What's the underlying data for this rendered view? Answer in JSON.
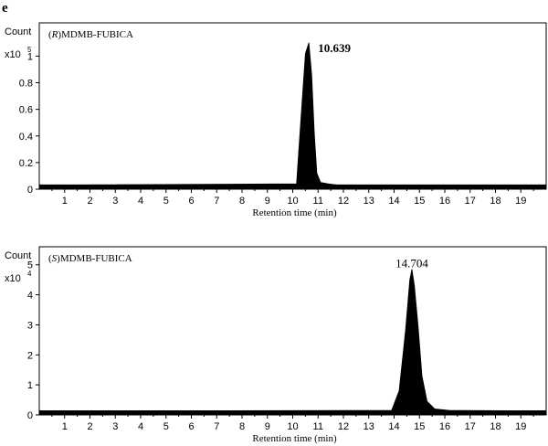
{
  "panel_letter": "e",
  "chart_data": [
    {
      "type": "line",
      "title_prefix": "R",
      "title_suffix": "MDMB-FUBICA",
      "ylabel": "Count",
      "yscale_label": "x10",
      "yscale_exp": "5",
      "xlabel": "Retention time (min)",
      "xlim": [
        0,
        20
      ],
      "ylim": [
        0,
        1.25
      ],
      "xticks": [
        1,
        2,
        3,
        4,
        5,
        6,
        7,
        8,
        9,
        10,
        11,
        12,
        13,
        14,
        15,
        16,
        17,
        18,
        19
      ],
      "yticks": [
        0,
        0.2,
        0.4,
        0.6,
        0.8,
        1
      ],
      "baseline": 0.03,
      "series": [
        {
          "x": [
            0,
            10.15,
            10.35,
            10.5,
            10.639,
            10.75,
            10.85,
            10.95,
            11.1,
            11.4,
            11.8,
            20
          ],
          "y": [
            0.03,
            0.04,
            0.6,
            1.02,
            1.1,
            0.85,
            0.42,
            0.12,
            0.05,
            0.04,
            0.03,
            0.03
          ]
        }
      ],
      "annotations": [
        {
          "text": "10.639",
          "x": 10.639,
          "y": 1.1,
          "bold": true
        }
      ]
    },
    {
      "type": "line",
      "title_prefix": "S",
      "title_suffix": "MDMB-FUBICA",
      "ylabel": "Count",
      "yscale_label": "x10",
      "yscale_exp": "4",
      "xlabel": "Retention time (min)",
      "xlim": [
        0,
        20
      ],
      "ylim": [
        0,
        5.6
      ],
      "xticks": [
        1,
        2,
        3,
        4,
        5,
        6,
        7,
        8,
        9,
        10,
        11,
        12,
        13,
        14,
        15,
        16,
        17,
        18,
        19
      ],
      "yticks": [
        0,
        1,
        2,
        3,
        4,
        5
      ],
      "baseline": 0.13,
      "series": [
        {
          "x": [
            0,
            13.9,
            14.2,
            14.45,
            14.62,
            14.704,
            14.8,
            14.95,
            15.1,
            15.3,
            15.6,
            16.2,
            20
          ],
          "y": [
            0.13,
            0.15,
            0.8,
            2.8,
            4.5,
            4.85,
            4.3,
            2.9,
            1.3,
            0.45,
            0.2,
            0.15,
            0.13
          ]
        }
      ],
      "annotations": [
        {
          "text": "14.704",
          "x": 14.704,
          "y": 4.85,
          "bold": false
        }
      ]
    }
  ]
}
